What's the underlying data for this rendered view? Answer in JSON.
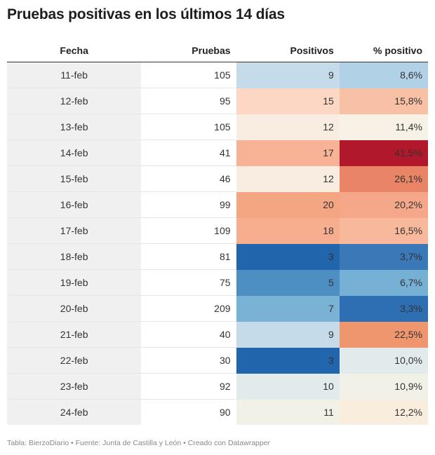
{
  "title": "Pruebas positivas en los últimos 14 días",
  "table": {
    "headers": {
      "fecha": "Fecha",
      "pruebas": "Pruebas",
      "positivos": "Positivos",
      "pct": "% positivo"
    },
    "rows": [
      {
        "fecha": "11-feb",
        "pruebas": "105",
        "positivos": "9",
        "pct": "8,6%",
        "pos_color": "#c6dbea",
        "pct_color": "#b1d2e6",
        "pos_dark": false,
        "pct_dark": false
      },
      {
        "fecha": "12-feb",
        "pruebas": "95",
        "positivos": "15",
        "pct": "15,8%",
        "pos_color": "#fcd7c4",
        "pct_color": "#f8c0a4",
        "pos_dark": false,
        "pct_dark": false
      },
      {
        "fecha": "13-feb",
        "pruebas": "105",
        "positivos": "12",
        "pct": "11,4%",
        "pos_color": "#f8ede0",
        "pct_color": "#f8f1e6",
        "pos_dark": false,
        "pct_dark": false
      },
      {
        "fecha": "14-feb",
        "pruebas": "41",
        "positivos": "17",
        "pct": "41,5%",
        "pos_color": "#f8b396",
        "pct_color": "#b2182b",
        "pos_dark": false,
        "pct_dark": true
      },
      {
        "fecha": "15-feb",
        "pruebas": "46",
        "positivos": "12",
        "pct": "26,1%",
        "pos_color": "#f8ede0",
        "pct_color": "#e98566",
        "pos_dark": false,
        "pct_dark": true
      },
      {
        "fecha": "16-feb",
        "pruebas": "99",
        "positivos": "20",
        "pct": "20,2%",
        "pos_color": "#f4a582",
        "pct_color": "#f5a789",
        "pos_dark": false,
        "pct_dark": false
      },
      {
        "fecha": "17-feb",
        "pruebas": "109",
        "positivos": "18",
        "pct": "16,5%",
        "pos_color": "#f7ae8f",
        "pct_color": "#f8b89c",
        "pos_dark": false,
        "pct_dark": false
      },
      {
        "fecha": "18-feb",
        "pruebas": "81",
        "positivos": "3",
        "pct": "3,7%",
        "pos_color": "#2166ac",
        "pct_color": "#3a78b8",
        "pos_dark": true,
        "pct_dark": true
      },
      {
        "fecha": "19-feb",
        "pruebas": "75",
        "positivos": "5",
        "pct": "6,7%",
        "pos_color": "#4d8fc2",
        "pct_color": "#76b0d5",
        "pos_dark": true,
        "pct_dark": true
      },
      {
        "fecha": "20-feb",
        "pruebas": "209",
        "positivos": "7",
        "pct": "3,3%",
        "pos_color": "#7ab2d6",
        "pct_color": "#2d6fb2",
        "pos_dark": true,
        "pct_dark": true
      },
      {
        "fecha": "21-feb",
        "pruebas": "40",
        "positivos": "9",
        "pct": "22,5%",
        "pos_color": "#c6dbea",
        "pct_color": "#f0966f",
        "pos_dark": false,
        "pct_dark": false
      },
      {
        "fecha": "22-feb",
        "pruebas": "30",
        "positivos": "3",
        "pct": "10,0%",
        "pos_color": "#2166ac",
        "pct_color": "#e2ebec",
        "pos_dark": true,
        "pct_dark": false
      },
      {
        "fecha": "23-feb",
        "pruebas": "92",
        "positivos": "10",
        "pct": "10,9%",
        "pos_color": "#e2ebec",
        "pct_color": "#f2f1e8",
        "pos_dark": false,
        "pct_dark": false
      },
      {
        "fecha": "24-feb",
        "pruebas": "90",
        "positivos": "11",
        "pct": "12,2%",
        "pos_color": "#f2f1e8",
        "pct_color": "#f9eddd",
        "pos_dark": false,
        "pct_dark": false
      }
    ]
  },
  "chart_data": {
    "type": "table",
    "title": "Pruebas positivas en los últimos 14 días",
    "columns": [
      "Fecha",
      "Pruebas",
      "Positivos",
      "% positivo"
    ],
    "x": [
      "11-feb",
      "12-feb",
      "13-feb",
      "14-feb",
      "15-feb",
      "16-feb",
      "17-feb",
      "18-feb",
      "19-feb",
      "20-feb",
      "21-feb",
      "22-feb",
      "23-feb",
      "24-feb"
    ],
    "series": [
      {
        "name": "Pruebas",
        "values": [
          105,
          95,
          105,
          41,
          46,
          99,
          109,
          81,
          75,
          209,
          40,
          30,
          92,
          90
        ]
      },
      {
        "name": "Positivos",
        "values": [
          9,
          15,
          12,
          17,
          12,
          20,
          18,
          3,
          5,
          7,
          9,
          3,
          10,
          11
        ]
      },
      {
        "name": "% positivo",
        "values": [
          8.6,
          15.8,
          11.4,
          41.5,
          26.1,
          20.2,
          16.5,
          3.7,
          6.7,
          3.3,
          22.5,
          10.0,
          10.9,
          12.2
        ]
      }
    ]
  },
  "footer": "Tabla: BierzoDiario • Fuente: Junta de Castilla y León • Creado con Datawrapper"
}
